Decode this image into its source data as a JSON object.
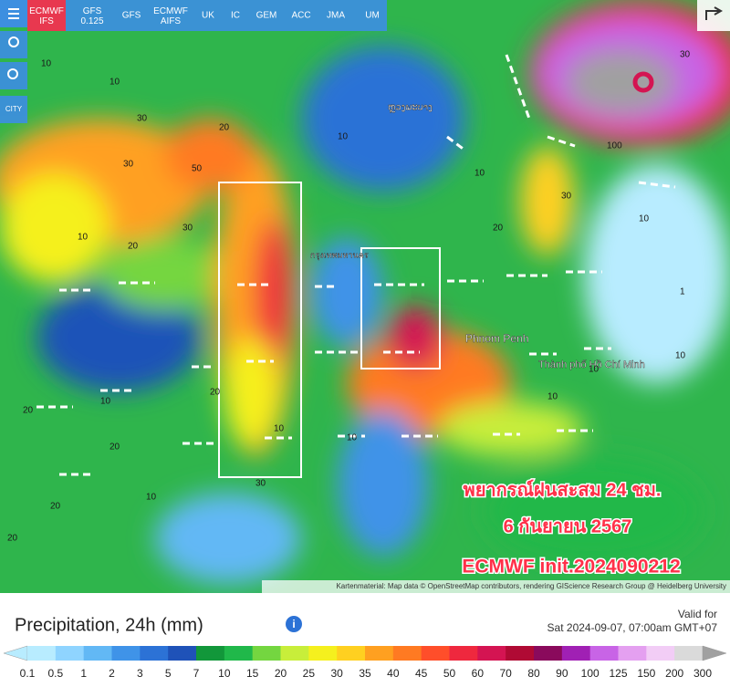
{
  "toolbar": {
    "models": [
      "ECMWF IFS",
      "GFS 0.125",
      "GFS",
      "ECMWF AIFS",
      "UK",
      "IC",
      "GEM",
      "ACC",
      "JMA",
      "UM"
    ],
    "city_button": "CITY"
  },
  "map": {
    "places": [
      "กรุงเทพมหานคร",
      "Phnom Penh",
      "Thành phố Hồ Chí Minh",
      "ຫຼວງພະບາງ"
    ],
    "contour_labels": [
      "10",
      "10",
      "30",
      "30",
      "20",
      "20",
      "10",
      "30",
      "10",
      "20",
      "10",
      "50",
      "10",
      "20",
      "30",
      "10",
      "30",
      "10",
      "10",
      "20",
      "10",
      "30",
      "100",
      "10",
      "20",
      "20",
      "10",
      "1",
      "10",
      "20"
    ],
    "overlay": [
      "พยากรณ์ฝนสะสม 24 ชม.",
      "6 กันยายน 2567",
      "ECMWF init.2024090212"
    ],
    "attribution": "Kartenmaterial: Map data © OpenStreetMap contributors, rendering GIScience Research Group @ Heidelberg University"
  },
  "legend": {
    "title": "Precipitation, 24h (mm)",
    "valid_label": "Valid for",
    "valid_time": "Sat 2024-09-07, 07:00am GMT+07",
    "stops": [
      {
        "label": "0.1",
        "color": "#b8ecff"
      },
      {
        "label": "0.5",
        "color": "#8fd4ff"
      },
      {
        "label": "1",
        "color": "#62b8f5"
      },
      {
        "label": "2",
        "color": "#3f93e8"
      },
      {
        "label": "3",
        "color": "#2c72d6"
      },
      {
        "label": "5",
        "color": "#1f52b8"
      },
      {
        "label": "7",
        "color": "#12973a"
      },
      {
        "label": "10",
        "color": "#20b84a"
      },
      {
        "label": "15",
        "color": "#74d640"
      },
      {
        "label": "20",
        "color": "#c8ee3a"
      },
      {
        "label": "25",
        "color": "#f5f01e"
      },
      {
        "label": "30",
        "color": "#ffd020"
      },
      {
        "label": "35",
        "color": "#ffa020"
      },
      {
        "label": "40",
        "color": "#ff7a22"
      },
      {
        "label": "45",
        "color": "#ff4e2a"
      },
      {
        "label": "50",
        "color": "#ef283e"
      },
      {
        "label": "60",
        "color": "#d41452"
      },
      {
        "label": "70",
        "color": "#b00a34"
      },
      {
        "label": "80",
        "color": "#8a0a5c"
      },
      {
        "label": "90",
        "color": "#a020b4"
      },
      {
        "label": "100",
        "color": "#c864e6"
      },
      {
        "label": "125",
        "color": "#e4a0f0"
      },
      {
        "label": "150",
        "color": "#f2cdf6"
      },
      {
        "label": "200",
        "color": "#dadada"
      },
      {
        "label": "300",
        "color": "#a0a0a0"
      }
    ]
  }
}
